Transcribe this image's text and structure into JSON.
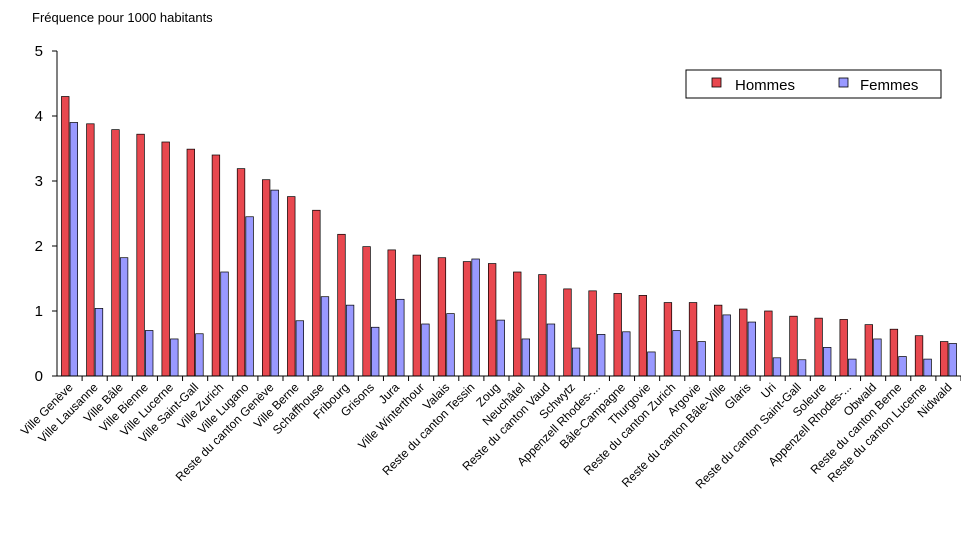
{
  "chart_data": {
    "type": "bar",
    "title": "",
    "ylabel": "Fréquence pour 1000 habitants",
    "xlabel": "",
    "ylim": [
      0,
      5
    ],
    "yticks": [
      "0",
      "1",
      "2",
      "3",
      "4",
      "5"
    ],
    "grid": false,
    "legend_position": "top-right",
    "categories": [
      "Ville Genève",
      "Ville Lausanne",
      "Ville Bâle",
      "Ville Bienne",
      "Ville Lucerne",
      "Ville Saint-Gall",
      "Ville Zurich",
      "Ville Lugano",
      "Reste du canton Genève",
      "Ville Berne",
      "Schaffhouse",
      "Fribourg",
      "Grisons",
      "Jura",
      "Ville Winterthour",
      "Valais",
      "Reste du canton Tessin",
      "Zoug",
      "Neuchâtel",
      "Reste du canton Vaud",
      "Schwytz",
      "Appenzell Rhodes-...",
      "Bâle-Campagne",
      "Thurgovie",
      "Reste du canton Zurich",
      "Argovie",
      "Reste du canton Bâle-Ville",
      "Glaris",
      "Uri",
      "Reste du canton Saint-Gall",
      "Soleure",
      "Appenzell Rhodes-...",
      "Obwald",
      "Reste du canton Berne",
      "Reste du canton Lucerne",
      "Nidwald"
    ],
    "series": [
      {
        "name": "Hommes",
        "color": "#e8484f",
        "values": [
          4.3,
          3.88,
          3.79,
          3.72,
          3.6,
          3.49,
          3.4,
          3.19,
          3.02,
          2.76,
          2.55,
          2.18,
          1.99,
          1.94,
          1.86,
          1.82,
          1.76,
          1.73,
          1.6,
          1.56,
          1.34,
          1.31,
          1.27,
          1.24,
          1.13,
          1.13,
          1.09,
          1.03,
          1.0,
          0.92,
          0.89,
          0.87,
          0.79,
          0.72,
          0.62,
          0.53
        ]
      },
      {
        "name": "Femmes",
        "color": "#9999ff",
        "values": [
          3.9,
          1.04,
          1.82,
          0.7,
          0.57,
          0.65,
          1.6,
          2.45,
          2.86,
          0.85,
          1.22,
          1.09,
          0.75,
          1.18,
          0.8,
          0.96,
          1.8,
          0.86,
          0.57,
          0.8,
          0.43,
          0.64,
          0.68,
          0.37,
          0.7,
          0.53,
          0.94,
          0.83,
          0.28,
          0.25,
          0.44,
          0.26,
          0.57,
          0.3,
          0.26,
          0.5
        ]
      }
    ]
  }
}
